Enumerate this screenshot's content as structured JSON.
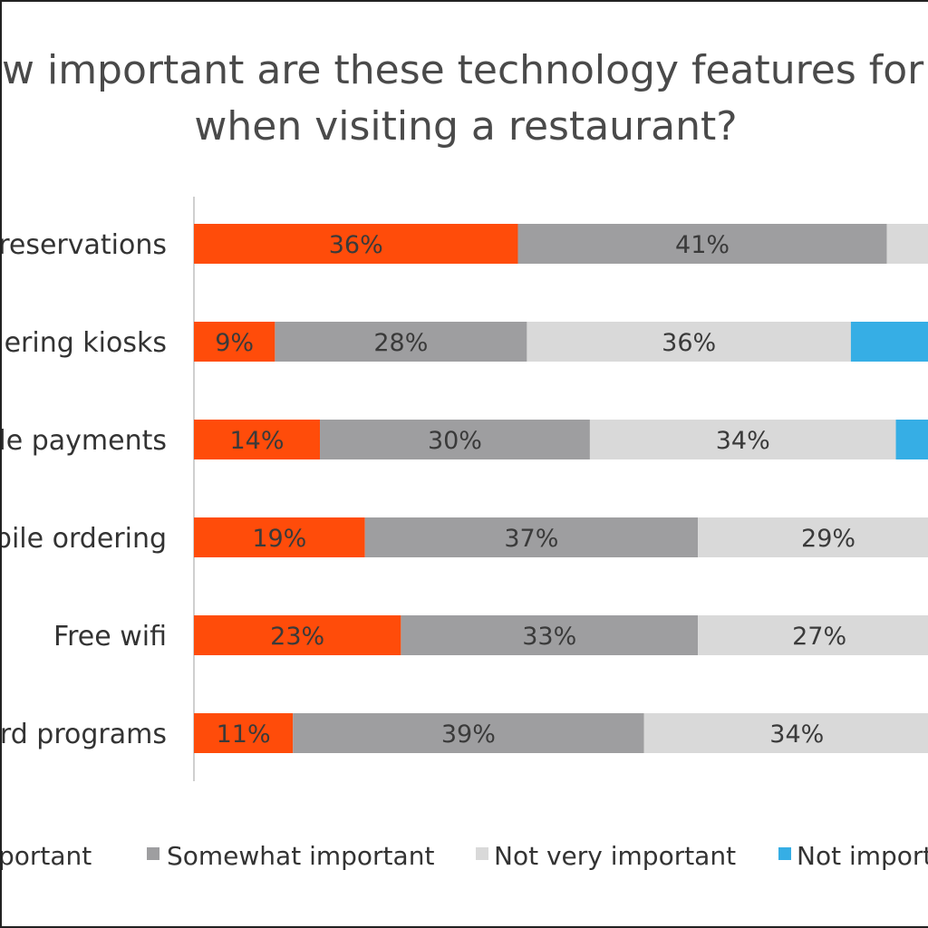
{
  "chart_data": {
    "type": "bar",
    "orientation": "horizontal",
    "stacked": true,
    "title_lines": [
      "w important are these technology features for y",
      "when visiting a restaurant?"
    ],
    "categories": [
      " reservations",
      "dering kiosks",
      "bile payments",
      "bile ordering",
      "Free wifi",
      "ard programs"
    ],
    "series": [
      {
        "name": "portant",
        "color": "#ff4c0a",
        "values": [
          36,
          9,
          14,
          19,
          23,
          11
        ]
      },
      {
        "name": "Somewhat important",
        "color": "#9e9ea0",
        "values": [
          41,
          28,
          30,
          37,
          33,
          39
        ]
      },
      {
        "name": "Not very important",
        "color": "#d9d9d9",
        "values": [
          null,
          36,
          34,
          29,
          27,
          34
        ]
      },
      {
        "name": "Not import",
        "color": "#36aee5",
        "values": [
          null,
          null,
          null,
          null,
          null,
          null
        ]
      }
    ],
    "value_suffix": "%",
    "xlim": [
      0,
      100
    ],
    "legend_position": "bottom",
    "grid": false
  }
}
